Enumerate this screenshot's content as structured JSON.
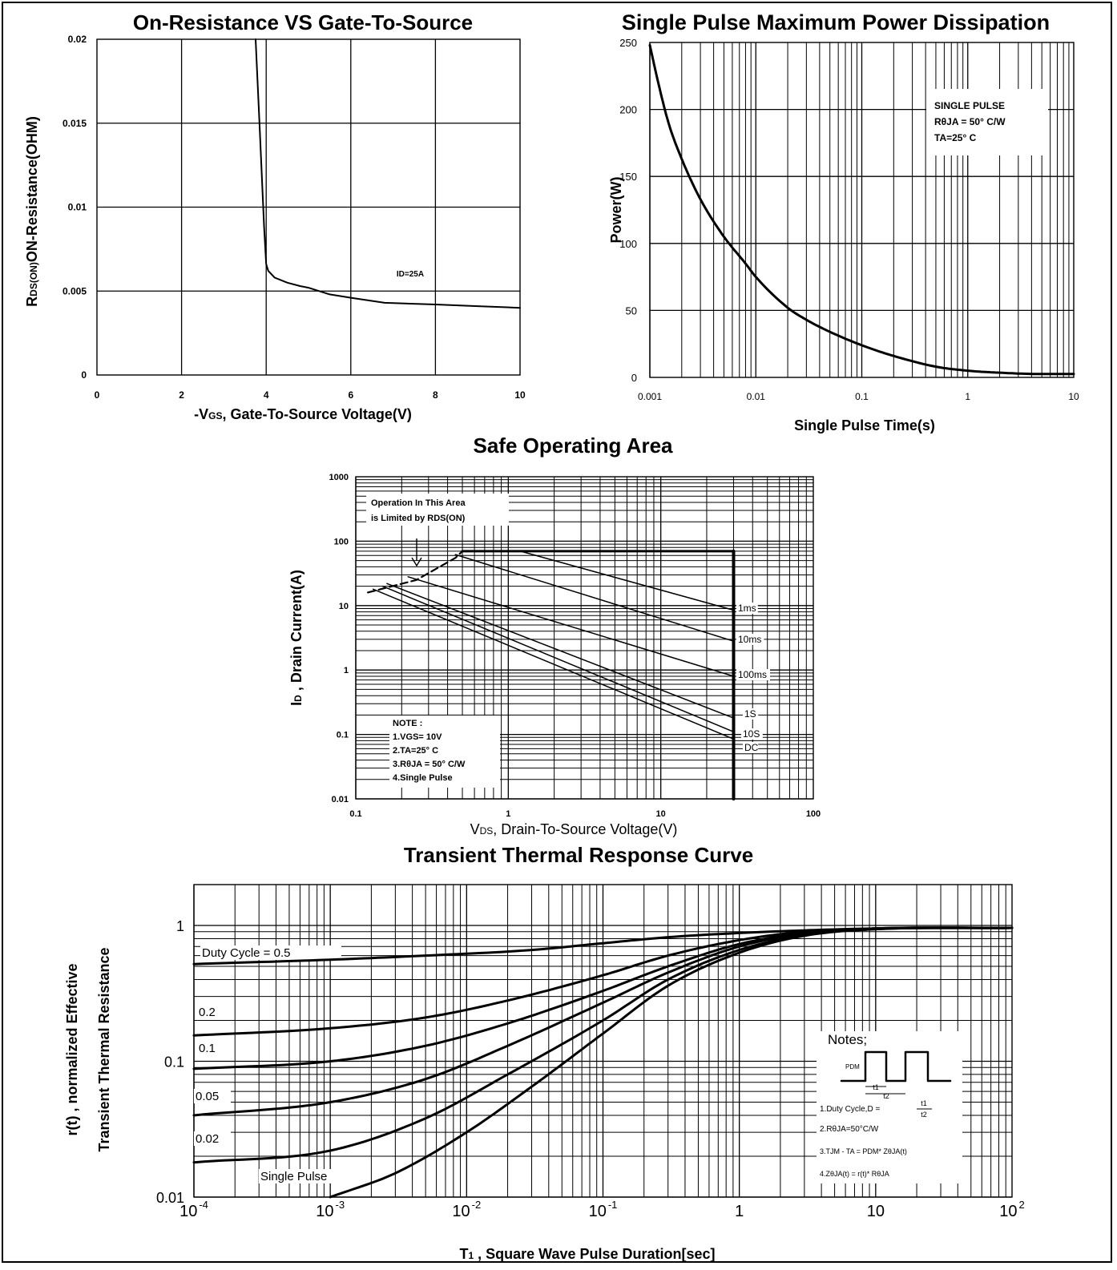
{
  "chart_data": [
    {
      "id": "rds",
      "type": "line",
      "title": "On-Resistance VS Gate-To-Source",
      "xlabel": "-VGS, Gate-To-Source Voltage(V)",
      "xlabel_main": "-V",
      "xlabel_sub": "GS",
      "xlabel_rest": ", Gate-To-Source Voltage(V)",
      "ylabel": "RDS(ON)ON-Resistance(OHM)",
      "ylabel_main": "R",
      "ylabel_sub": "DS(ON)",
      "ylabel_rest": "ON-Resistance(OHM)",
      "xlim": [
        0,
        10
      ],
      "ylim": [
        0,
        0.02
      ],
      "x_ticks": [
        "0",
        "2",
        "4",
        "6",
        "8",
        "10"
      ],
      "y_ticks": [
        "0",
        "0.005",
        "0.01",
        "0.015",
        "0.02"
      ],
      "annotation": "ID=25A",
      "series": [
        {
          "x": [
            3.75,
            3.85,
            3.95,
            4.0,
            4.05,
            4.2,
            4.5,
            4.8,
            5.0,
            5.5,
            6.0,
            6.8,
            8.0,
            9.0,
            10.0
          ],
          "y": [
            0.02,
            0.0145,
            0.0088,
            0.0066,
            0.0062,
            0.0058,
            0.0055,
            0.0053,
            0.0052,
            0.0048,
            0.0046,
            0.0043,
            0.0042,
            0.0041,
            0.004
          ]
        }
      ]
    },
    {
      "id": "power",
      "type": "line",
      "title": "Single Pulse Maximum Power Dissipation",
      "xlabel": "Single Pulse Time(s)",
      "ylabel": "Power(W)",
      "xscale": "log",
      "xlim": [
        0.001,
        10
      ],
      "ylim": [
        0,
        250
      ],
      "x_ticks": [
        "0.001",
        "0.01",
        "0.1",
        "1",
        "10"
      ],
      "y_ticks": [
        "0",
        "50",
        "100",
        "150",
        "200",
        "250"
      ],
      "legend": [
        "SINGLE PULSE",
        "RθJA = 50° C/W",
        "TA=25° C"
      ],
      "series": [
        {
          "x": [
            0.001,
            0.0012,
            0.0015,
            0.002,
            0.003,
            0.005,
            0.008,
            0.01,
            0.02,
            0.03,
            0.05,
            0.1,
            0.2,
            0.5,
            1,
            2,
            5,
            10
          ],
          "y": [
            248,
            220,
            190,
            163,
            133,
            105,
            85,
            75,
            52,
            43,
            34,
            24,
            16,
            8,
            5,
            3.5,
            2.5,
            2.5
          ]
        }
      ]
    },
    {
      "id": "soa",
      "type": "line",
      "title": "Safe Operating Area",
      "xlabel": "VDS, Drain-To-Source Voltage(V)",
      "xlabel_main": "V",
      "xlabel_sub": "DS",
      "xlabel_rest": ", Drain-To-Source Voltage(V)",
      "ylabel": "ID , Drain Current(A)",
      "ylabel_main": "I",
      "ylabel_sub": "D",
      "ylabel_rest": " , Drain Current(A)",
      "xscale": "log",
      "yscale": "log",
      "xlim": [
        0.1,
        100
      ],
      "ylim": [
        0.01,
        1000
      ],
      "x_ticks": [
        "0.1",
        "1",
        "10",
        "100"
      ],
      "y_ticks": [
        "0.01",
        "0.1",
        "1",
        "10",
        "100",
        "1000"
      ],
      "box_text": [
        "Operation In This Area",
        "is Limited by RDS(ON)"
      ],
      "note": [
        "NOTE :",
        "1.VGS= 10V",
        "2.TA=25° C",
        "3.RθJA = 50° C/W",
        "4.Single Pulse"
      ],
      "series": [
        {
          "name": "1ms",
          "x": [
            1.2,
            30
          ],
          "y": [
            70,
            8.5
          ]
        },
        {
          "name": "10ms",
          "x": [
            0.45,
            30
          ],
          "y": [
            62,
            2.8
          ]
        },
        {
          "name": "100ms",
          "x": [
            0.22,
            30
          ],
          "y": [
            28,
            0.8
          ]
        },
        {
          "name": "1S",
          "x": [
            0.16,
            30
          ],
          "y": [
            22,
            0.18
          ]
        },
        {
          "name": "10S",
          "x": [
            0.15,
            30
          ],
          "y": [
            20,
            0.11
          ]
        },
        {
          "name": "DC",
          "x": [
            0.13,
            30
          ],
          "y": [
            18,
            0.085
          ]
        }
      ],
      "rds_limit": {
        "x": [
          0.12,
          0.25,
          0.45,
          0.5
        ],
        "y": [
          16,
          25,
          55,
          70
        ]
      },
      "current_limit": {
        "x": [
          0.5,
          30
        ],
        "y": [
          70,
          70
        ]
      },
      "voltage_limit": {
        "x": [
          30,
          30
        ],
        "y": [
          70,
          0.01
        ]
      }
    },
    {
      "id": "thermal",
      "type": "line",
      "title": "Transient Thermal Response Curve",
      "xlabel": "T1 , Square Wave Pulse Duration[sec]",
      "xlabel_main": "T",
      "xlabel_sub": "1",
      "xlabel_rest": " , Square Wave Pulse Duration[sec]",
      "ylabel": [
        "r(t) , normalized Effective",
        "Transient Thermal Resistance"
      ],
      "xscale": "log",
      "yscale": "log",
      "xlim": [
        0.0001,
        100
      ],
      "ylim": [
        0.01,
        2
      ],
      "x_ticks": [
        {
          "base": "10",
          "exp": "-4"
        },
        {
          "base": "10",
          "exp": "-3"
        },
        {
          "base": "10",
          "exp": "-2"
        },
        {
          "base": "10",
          "exp": "-1"
        },
        {
          "base": "1",
          "exp": ""
        },
        {
          "base": "10",
          "exp": ""
        },
        {
          "base": "10",
          "exp": "2"
        }
      ],
      "y_ticks": [
        "0.01",
        "0.1",
        "1"
      ],
      "notes": [
        "Notes;",
        "1.Duty Cycle,D =",
        "2.RθJA=50°C/W",
        "3.TJM - TA = PDM* ZθJA(t)",
        "4.ZθJA(t) = r(t)* RθJA"
      ],
      "notes_pulse": [
        "PDM",
        "t1",
        "t2"
      ],
      "notes_fraction": [
        "t1",
        "t2"
      ],
      "series": [
        {
          "name": "Duty Cycle = 0.5",
          "x": [
            0.0001,
            0.001,
            0.005,
            0.03,
            0.1,
            0.3,
            1,
            3,
            10,
            100
          ],
          "y": [
            0.52,
            0.56,
            0.6,
            0.66,
            0.74,
            0.82,
            0.88,
            0.92,
            0.95,
            0.96
          ]
        },
        {
          "name": "0.2",
          "x": [
            0.0001,
            0.001,
            0.005,
            0.02,
            0.1,
            0.3,
            1,
            3,
            10,
            100
          ],
          "y": [
            0.155,
            0.175,
            0.21,
            0.28,
            0.43,
            0.6,
            0.78,
            0.9,
            0.95,
            0.96
          ]
        },
        {
          "name": "0.1",
          "x": [
            0.0001,
            0.001,
            0.005,
            0.02,
            0.1,
            0.3,
            1,
            3,
            10,
            100
          ],
          "y": [
            0.088,
            0.1,
            0.13,
            0.19,
            0.33,
            0.5,
            0.73,
            0.88,
            0.95,
            0.96
          ]
        },
        {
          "name": "0.05",
          "x": [
            0.0001,
            0.001,
            0.005,
            0.02,
            0.1,
            0.3,
            1,
            3,
            10,
            100
          ],
          "y": [
            0.04,
            0.05,
            0.074,
            0.13,
            0.27,
            0.45,
            0.7,
            0.87,
            0.95,
            0.96
          ]
        },
        {
          "name": "0.02",
          "x": [
            0.0001,
            0.001,
            0.005,
            0.02,
            0.1,
            0.3,
            1,
            3,
            10,
            100
          ],
          "y": [
            0.018,
            0.022,
            0.038,
            0.08,
            0.2,
            0.4,
            0.66,
            0.85,
            0.94,
            0.96
          ]
        },
        {
          "name": "Single Pulse",
          "x": [
            0.001,
            0.003,
            0.01,
            0.03,
            0.1,
            0.3,
            1,
            3,
            10,
            100
          ],
          "y": [
            0.01,
            0.015,
            0.03,
            0.065,
            0.16,
            0.36,
            0.63,
            0.84,
            0.94,
            0.96
          ]
        }
      ]
    }
  ]
}
